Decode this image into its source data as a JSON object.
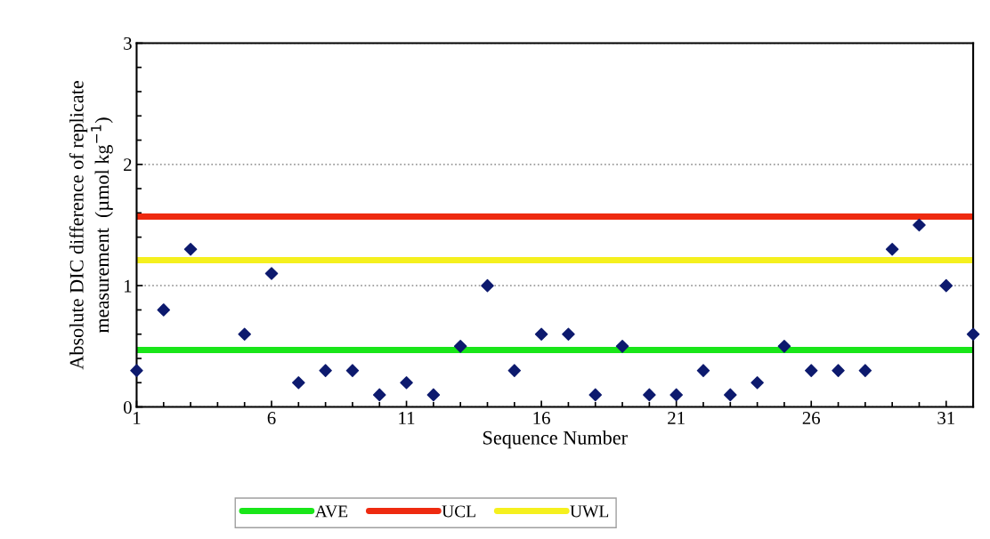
{
  "chart_data": {
    "type": "scatter",
    "xlabel": "Sequence Number",
    "ylabel": "Absolute DIC difference of replicate\nmeasurement  (µmol kg$^{−1}$)",
    "x": [
      1,
      2,
      3,
      4,
      5,
      6,
      7,
      8,
      9,
      10,
      11,
      12,
      13,
      14,
      15,
      16,
      17,
      18,
      19,
      20,
      21,
      22,
      23,
      24,
      25,
      26,
      27,
      28,
      29,
      30,
      31,
      32
    ],
    "series": [
      {
        "color": "#0d1a6e",
        "values": [
          0.3,
          0.8,
          1.3,
          null,
          0.6,
          1.1,
          0.2,
          0.3,
          0.3,
          0.1,
          0.2,
          0.1,
          0.5,
          1.0,
          0.3,
          0.6,
          0.6,
          0.1,
          0.5,
          0.1,
          0.1,
          0.3,
          0.1,
          0.2,
          0.5,
          0.3,
          0.3,
          0.3,
          1.3,
          1.5,
          1.0,
          0.6
        ]
      }
    ],
    "marker": "diamond",
    "xlim": [
      1,
      32
    ],
    "xticks": [
      1,
      6,
      11,
      16,
      21,
      26,
      31
    ],
    "ylim": [
      0,
      3
    ],
    "yticks": [
      0,
      1,
      2,
      3
    ],
    "grid": "y",
    "ref_lines": [
      {
        "axis": "y",
        "value": 0.47,
        "label": "AVE",
        "color": "#19e619"
      },
      {
        "axis": "y",
        "value": 1.57,
        "label": "UCL",
        "color": "#ee2a10"
      },
      {
        "axis": "y",
        "value": 1.21,
        "label": "UWL",
        "color": "#f5f01e"
      }
    ],
    "legend": "bottom"
  }
}
